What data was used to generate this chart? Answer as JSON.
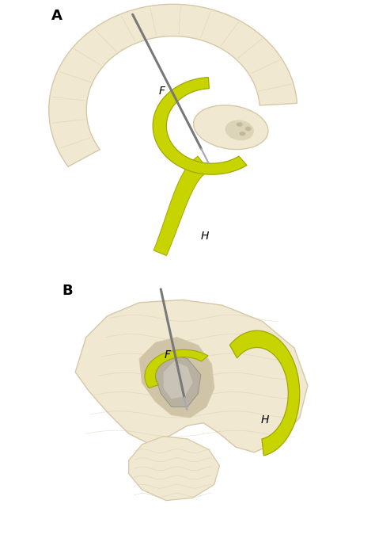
{
  "background_color": "#ffffff",
  "panel_A_label": "A",
  "panel_B_label": "B",
  "label_F": "F",
  "label_H": "H",
  "brain_color": "#f0e8d0",
  "brain_edge_color": "#d4c8a8",
  "fornix_color": "#c8d400",
  "fornix_edge_color": "#a0a800",
  "electrode_color": "#787878",
  "shadow_color": "#c0b898",
  "label_fontsize": 10,
  "panel_label_fontsize": 13,
  "fig_width": 4.74,
  "fig_height": 6.89,
  "dpi": 100
}
